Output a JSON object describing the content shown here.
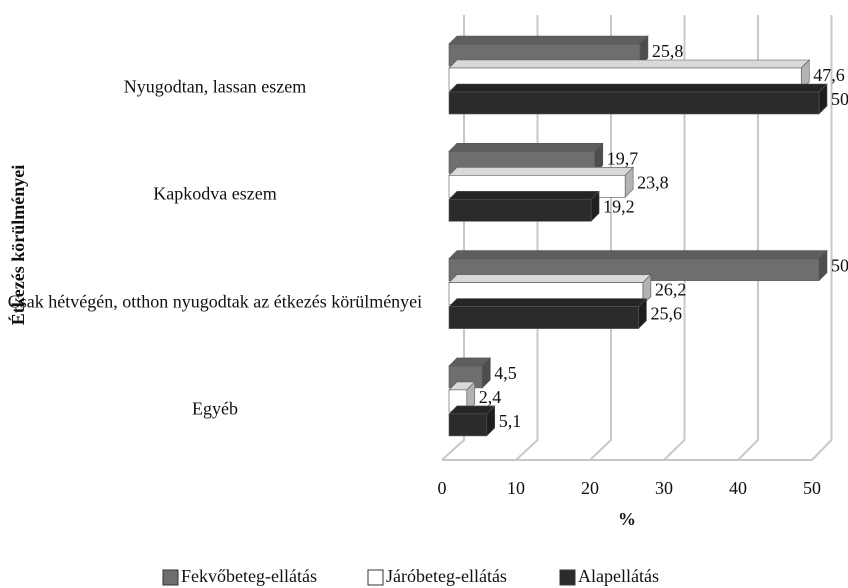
{
  "chart_data": {
    "type": "bar3d_horizontal",
    "xlabel": "%",
    "ylabel": "Étkezés körülményei",
    "categories": [
      "Nyugodtan, lassan eszem",
      "Kapkodva eszem",
      "Csak hétvégén, otthon nyugodtak az étkezés körülményei",
      "Egyéb"
    ],
    "series": [
      {
        "name": "Fekvőbeteg-ellátás",
        "color": "#6e6e6e",
        "values": [
          25.8,
          19.7,
          50,
          4.5
        ],
        "value_labels": [
          "25,8",
          "19,7",
          "50",
          "4,5"
        ]
      },
      {
        "name": "Járóbeteg-ellátás",
        "color": "#ffffff",
        "values": [
          47.6,
          23.8,
          26.2,
          2.4
        ],
        "value_labels": [
          "47,6",
          "23,8",
          "26,2",
          "2,4"
        ]
      },
      {
        "name": "Alapellátás",
        "color": "#2b2b2b",
        "values": [
          50,
          19.2,
          25.6,
          5.1
        ],
        "value_labels": [
          "50",
          "19,2",
          "25,6",
          "5,1"
        ]
      }
    ],
    "xlim": [
      0,
      50
    ],
    "xticks": [
      0,
      10,
      20,
      30,
      40,
      50
    ],
    "grid": true,
    "legend": "bottom"
  }
}
